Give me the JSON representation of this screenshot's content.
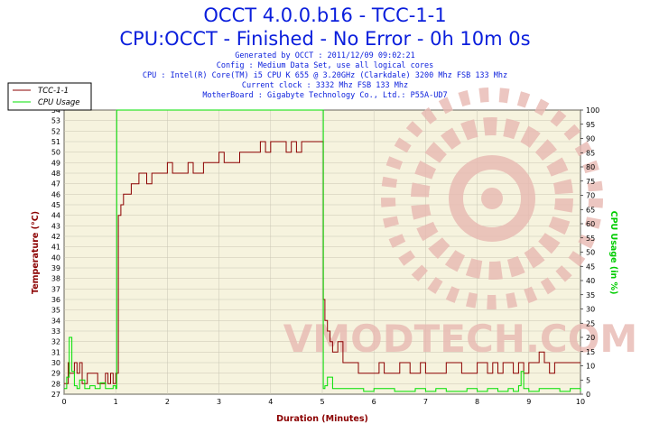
{
  "header": {
    "title": "OCCT 4.0.0.b16 - TCC-1-1",
    "subtitle": "CPU:OCCT - Finished - No Error - 0h 10m 0s",
    "info_lines": [
      "Generated by OCCT : 2011/12/09 09:02:21",
      "Config : Medium Data Set, use all logical cores",
      "CPU : Intel(R) Core(TM) i5 CPU K 655 @ 3.20GHz (Clarkdale) 3200 Mhz FSB 133 Mhz",
      "Current clock : 3332 Mhz FSB 133 Mhz",
      "MotherBoard : Gigabyte Technology Co., Ltd.: P55A-UD7"
    ]
  },
  "watermark": {
    "text": "VMODTECH.COM",
    "color": "#e8b9b2"
  },
  "chart_data": {
    "type": "line",
    "xlabel": "Duration (Minutes)",
    "ylabel": "Temperature (°C)",
    "y2label": "CPU Usage (in %)",
    "xlim": [
      0,
      10
    ],
    "ylim": [
      27,
      54
    ],
    "y2lim": [
      0,
      100
    ],
    "x_ticks": [
      0,
      1,
      2,
      3,
      4,
      5,
      6,
      7,
      8,
      9,
      10
    ],
    "y_ticks": [
      27,
      28,
      29,
      30,
      31,
      32,
      33,
      34,
      35,
      36,
      37,
      38,
      39,
      40,
      41,
      42,
      43,
      44,
      45,
      46,
      47,
      48,
      49,
      50,
      51,
      52,
      53,
      54
    ],
    "y2_ticks": [
      0,
      5,
      10,
      15,
      20,
      25,
      30,
      35,
      40,
      45,
      50,
      55,
      60,
      65,
      70,
      75,
      80,
      85,
      90,
      95,
      100
    ],
    "background": "#f6f3de",
    "grid": true,
    "legend_position": "top-left",
    "series": [
      {
        "name": "TCC-1-1",
        "axis": "left",
        "color": "#8b0000",
        "x": [
          0,
          0.08,
          0.1,
          0.15,
          0.2,
          0.25,
          0.3,
          0.35,
          0.45,
          0.5,
          0.6,
          0.65,
          0.8,
          0.85,
          0.9,
          0.95,
          1.0,
          1.02,
          1.05,
          1.1,
          1.15,
          1.2,
          1.3,
          1.4,
          1.45,
          1.5,
          1.6,
          1.7,
          1.8,
          1.9,
          2.0,
          2.1,
          2.2,
          2.3,
          2.4,
          2.5,
          2.6,
          2.7,
          2.8,
          2.9,
          3.0,
          3.1,
          3.2,
          3.3,
          3.4,
          3.5,
          3.6,
          3.7,
          3.8,
          3.9,
          4.0,
          4.1,
          4.2,
          4.3,
          4.4,
          4.5,
          4.6,
          4.7,
          4.8,
          4.9,
          5.0,
          5.02,
          5.05,
          5.1,
          5.15,
          5.2,
          5.3,
          5.4,
          5.5,
          5.6,
          5.7,
          5.8,
          5.9,
          6.0,
          6.1,
          6.2,
          6.3,
          6.4,
          6.5,
          6.6,
          6.7,
          6.8,
          6.9,
          7.0,
          7.1,
          7.2,
          7.3,
          7.4,
          7.5,
          7.6,
          7.7,
          7.8,
          7.9,
          8.0,
          8.1,
          8.2,
          8.3,
          8.4,
          8.5,
          8.6,
          8.7,
          8.8,
          8.9,
          9.0,
          9.1,
          9.2,
          9.3,
          9.4,
          9.5,
          9.6,
          9.7,
          9.8,
          9.9,
          10.0
        ],
        "values": [
          28,
          30,
          29,
          29,
          30,
          29,
          30,
          28,
          29,
          29,
          29,
          28,
          29,
          28,
          29,
          28,
          29,
          29,
          44,
          45,
          46,
          46,
          47,
          47,
          48,
          48,
          47,
          48,
          48,
          48,
          49,
          48,
          48,
          48,
          49,
          48,
          48,
          49,
          49,
          49,
          50,
          49,
          49,
          49,
          50,
          50,
          50,
          50,
          51,
          50,
          51,
          51,
          51,
          50,
          51,
          50,
          51,
          51,
          51,
          51,
          51,
          36,
          34,
          33,
          32,
          31,
          32,
          30,
          30,
          30,
          29,
          29,
          29,
          29,
          30,
          29,
          29,
          29,
          30,
          30,
          29,
          29,
          30,
          29,
          29,
          29,
          29,
          30,
          30,
          30,
          29,
          29,
          29,
          30,
          30,
          29,
          30,
          29,
          30,
          30,
          29,
          30,
          29,
          30,
          30,
          31,
          30,
          29,
          30,
          30,
          30,
          30,
          30,
          30
        ]
      },
      {
        "name": "CPU Usage",
        "axis": "right",
        "color": "#00e000",
        "x": [
          0,
          0.05,
          0.1,
          0.15,
          0.2,
          0.25,
          0.3,
          0.4,
          0.5,
          0.6,
          0.7,
          0.8,
          0.9,
          0.95,
          1.0,
          1.02,
          1.05,
          1.1,
          1.5,
          2.0,
          2.5,
          3.0,
          3.5,
          4.0,
          4.5,
          4.95,
          5.0,
          5.02,
          5.05,
          5.1,
          5.2,
          5.4,
          5.6,
          5.8,
          6.0,
          6.2,
          6.4,
          6.6,
          6.8,
          7.0,
          7.2,
          7.4,
          7.6,
          7.8,
          8.0,
          8.2,
          8.4,
          8.6,
          8.7,
          8.8,
          8.85,
          8.9,
          9.0,
          9.2,
          9.4,
          9.6,
          9.8,
          10.0
        ],
        "values": [
          2,
          6,
          20,
          8,
          3,
          2,
          5,
          2,
          3,
          2,
          4,
          2,
          2,
          3,
          2,
          100,
          100,
          100,
          100,
          100,
          100,
          100,
          100,
          100,
          100,
          100,
          100,
          2,
          3,
          6,
          2,
          2,
          2,
          1,
          2,
          2,
          1,
          1,
          2,
          1,
          2,
          1,
          1,
          2,
          1,
          2,
          1,
          2,
          1,
          3,
          8,
          2,
          1,
          2,
          2,
          1,
          2,
          1
        ]
      }
    ]
  }
}
